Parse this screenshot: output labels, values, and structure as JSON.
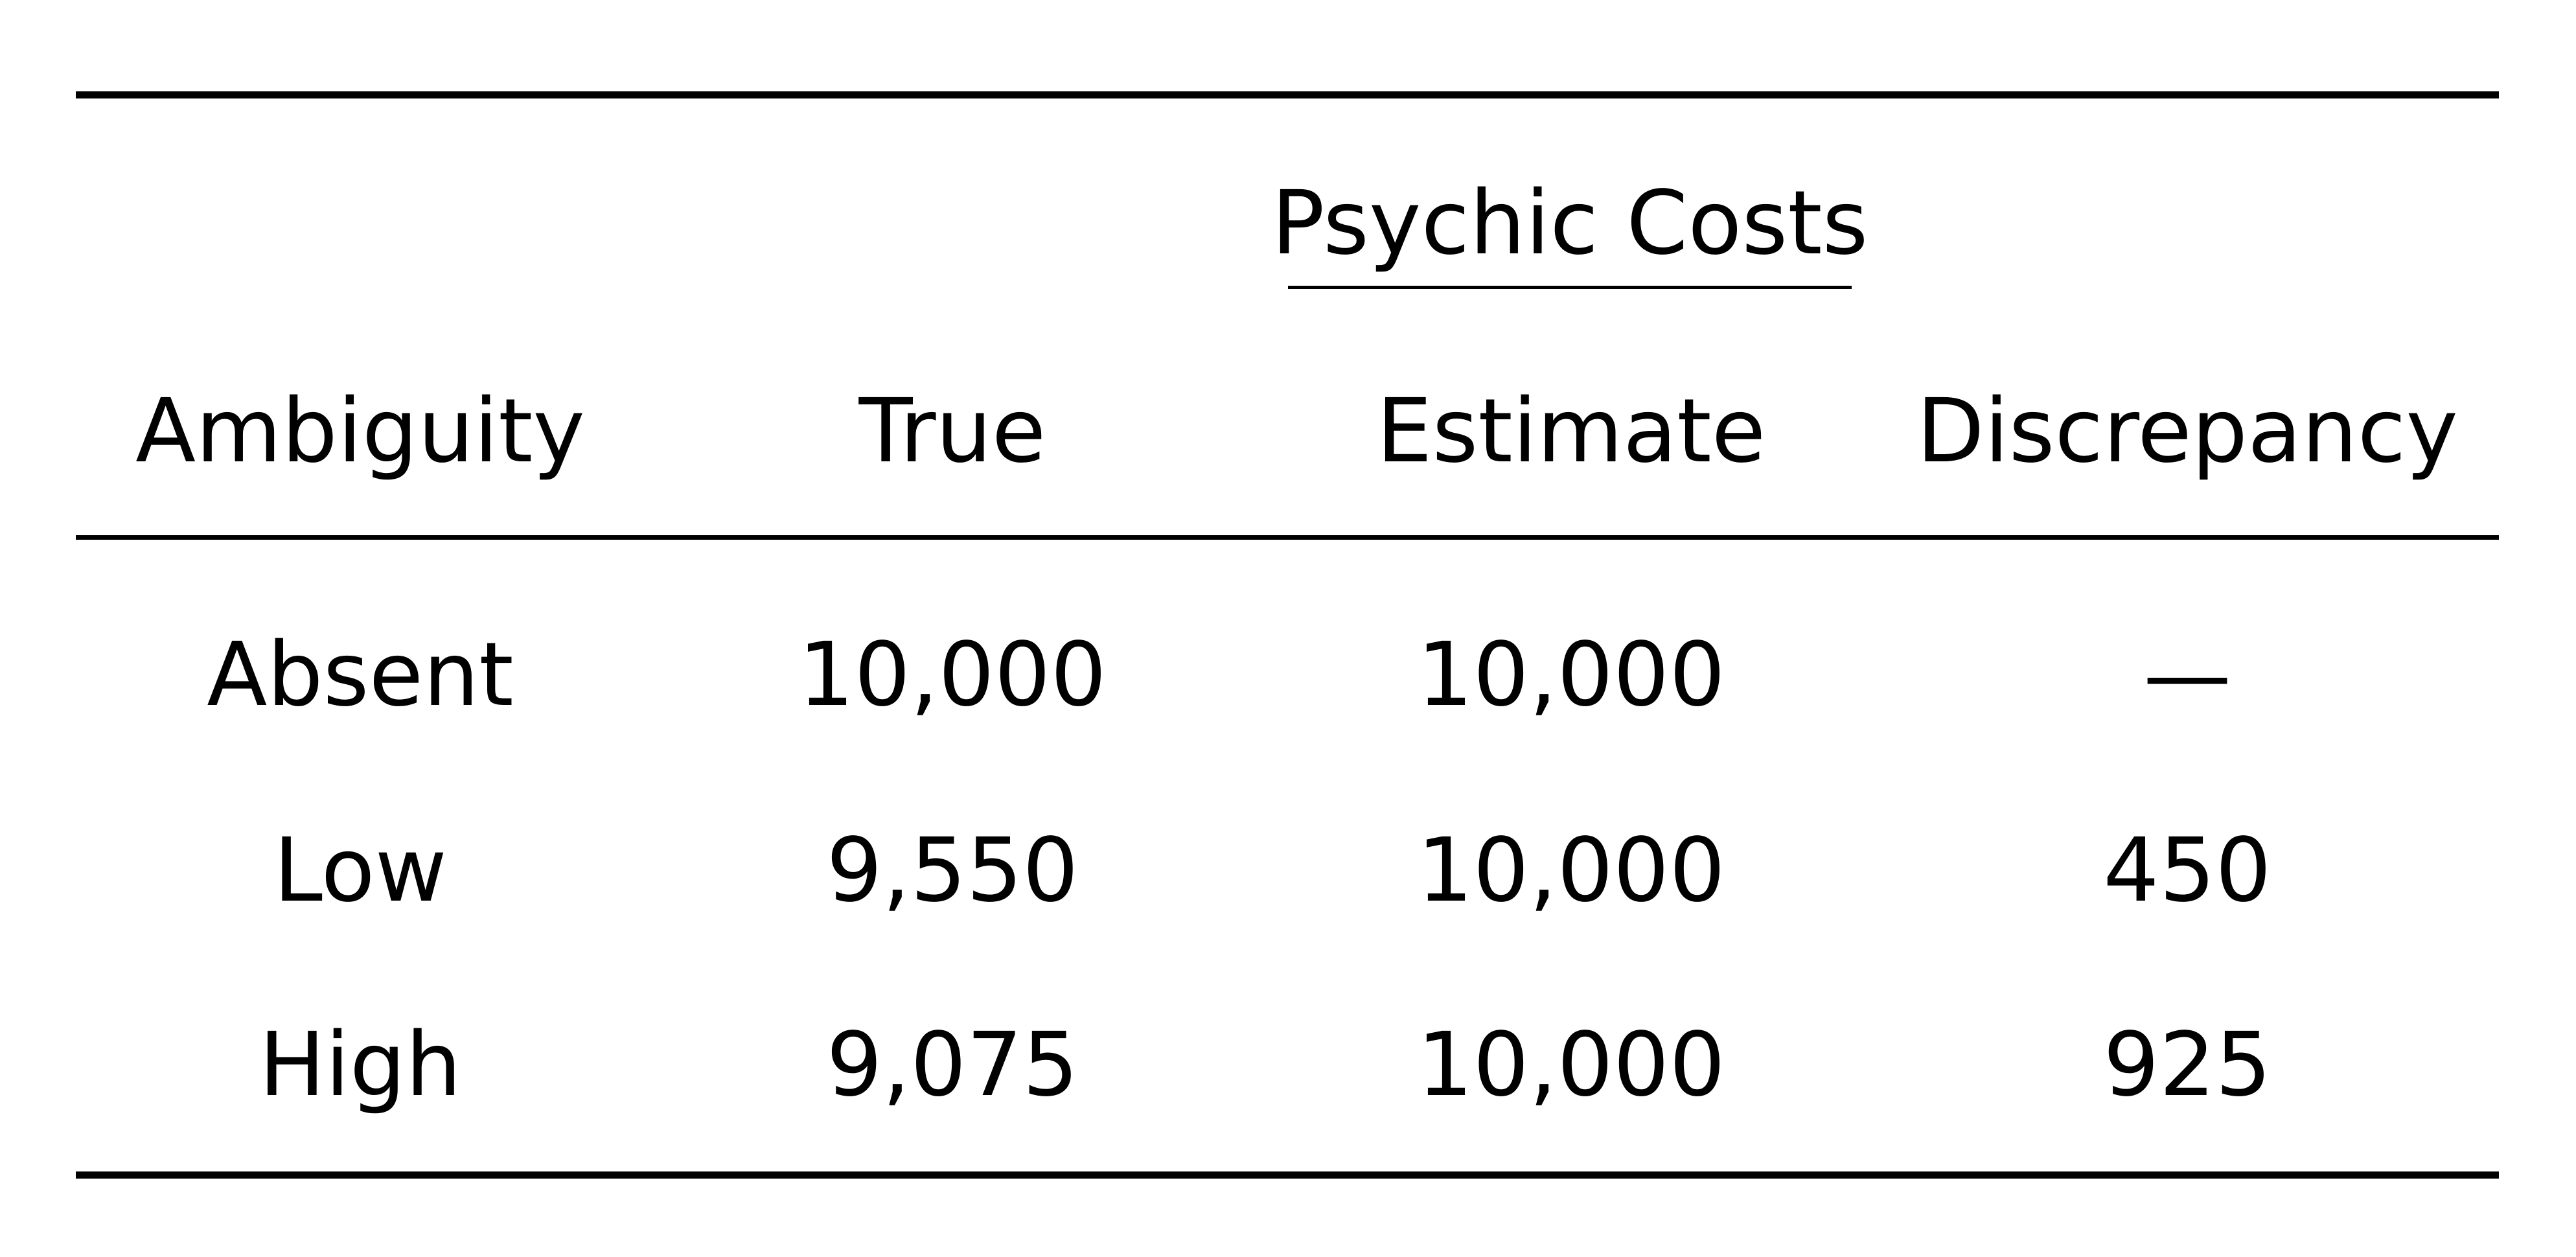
{
  "table": {
    "group_header": "Psychic Costs",
    "columns": [
      "Ambiguity",
      "True",
      "Estimate",
      "Discrepancy"
    ],
    "rows": [
      [
        "Absent",
        "10,000",
        "10,000",
        "—"
      ],
      [
        "Low",
        "9,550",
        "10,000",
        "450"
      ],
      [
        "High",
        "9,075",
        "10,000",
        "925"
      ]
    ]
  }
}
